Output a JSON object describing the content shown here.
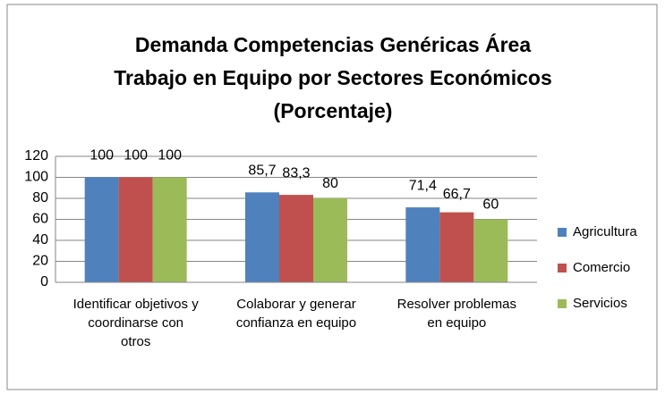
{
  "chart_data": {
    "type": "bar",
    "title": [
      "Demanda Competencias Genéricas Área",
      "Trabajo en Equipo por Sectores Económicos",
      "(Porcentaje)"
    ],
    "categories": [
      "Identificar objetivos y coordinarse con otros",
      "Colaborar y generar confianza en equipo",
      "Resolver problemas en equipo"
    ],
    "series": [
      {
        "name": "Agricultura",
        "color": "#4f81bd",
        "values": [
          100,
          85.7,
          71.4
        ],
        "value_labels": [
          "100",
          "85,7",
          "71,4"
        ]
      },
      {
        "name": "Comercio",
        "color": "#c0504d",
        "values": [
          100,
          83.3,
          66.7
        ],
        "value_labels": [
          "100",
          "83,3",
          "66,7"
        ]
      },
      {
        "name": "Servicios",
        "color": "#9bbb59",
        "values": [
          100,
          80,
          60
        ],
        "value_labels": [
          "100",
          "80",
          "60"
        ]
      }
    ],
    "ylim": [
      0,
      120
    ],
    "yticks": [
      0,
      20,
      40,
      60,
      80,
      100,
      120
    ],
    "grid": true,
    "legend": "right"
  }
}
